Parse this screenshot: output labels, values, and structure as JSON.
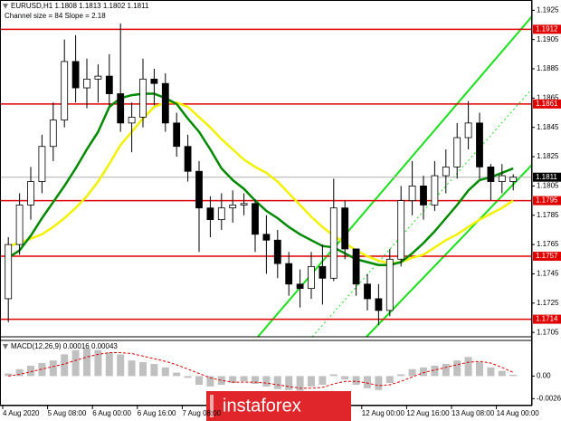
{
  "chart_data": {
    "type": "candlestick",
    "title": "EURUSD,H1 1.1808 1.1813 1.1802 1.1811",
    "subtitle": "Channel size = 84 Slope = 2.18",
    "categories": [
      "4 Aug 2020",
      null,
      null,
      null,
      "5 Aug 08:00",
      null,
      null,
      null,
      "6 Aug 00:00",
      null,
      null,
      null,
      "6 Aug 16:00",
      null,
      null,
      null,
      "7 Aug 08:00",
      null,
      null,
      null,
      null,
      null,
      null,
      null,
      null,
      null,
      null,
      null,
      null,
      null,
      null,
      null,
      "12 Aug 00:00",
      null,
      null,
      null,
      "12 Aug 16:00",
      null,
      null,
      null,
      "13 Aug 08:00",
      null,
      null,
      null,
      "14 Aug 00:00",
      null
    ],
    "open": [
      1.1728,
      1.1765,
      1.1792,
      1.1808,
      1.1832,
      1.185,
      1.189,
      1.1872,
      1.1878,
      1.188,
      1.1868,
      1.1848,
      1.1852,
      1.1878,
      1.1875,
      1.1848,
      1.1832,
      1.1815,
      1.179,
      1.1782,
      1.179,
      1.1792,
      1.1793,
      1.1772,
      1.1768,
      1.1752,
      1.1738,
      1.1735,
      1.175,
      1.1742,
      1.179,
      1.1762,
      1.1738,
      1.1728,
      1.172,
      1.1755,
      1.1795,
      1.1805,
      1.1792,
      1.1812,
      1.1818,
      1.1838,
      1.1848,
      1.1818,
      1.1808,
      1.1808
    ],
    "high": [
      1.177,
      1.18,
      1.1818,
      1.184,
      1.1862,
      1.1905,
      1.1908,
      1.1892,
      1.1888,
      1.1895,
      1.1916,
      1.1862,
      1.1892,
      1.1885,
      1.1882,
      1.1855,
      1.184,
      1.1822,
      1.1798,
      1.18,
      1.1802,
      1.18,
      1.1796,
      1.1785,
      1.1775,
      1.176,
      1.1748,
      1.176,
      1.1765,
      1.181,
      1.1795,
      1.1762,
      1.1745,
      1.1738,
      1.1762,
      1.1805,
      1.1822,
      1.1812,
      1.1822,
      1.183,
      1.1848,
      1.1863,
      1.1855,
      1.182,
      1.182,
      1.1813
    ],
    "low": [
      1.1712,
      1.1758,
      1.1782,
      1.18,
      1.1822,
      1.1845,
      1.1862,
      1.1858,
      1.1862,
      1.186,
      1.1842,
      1.1828,
      1.1845,
      1.186,
      1.1842,
      1.1825,
      1.1808,
      1.176,
      1.177,
      1.1775,
      1.178,
      1.1785,
      1.176,
      1.1745,
      1.1742,
      1.173,
      1.1722,
      1.1728,
      1.1724,
      1.174,
      1.1755,
      1.173,
      1.172,
      1.171,
      1.1716,
      1.175,
      1.1785,
      1.1782,
      1.1788,
      1.18,
      1.181,
      1.183,
      1.181,
      1.1795,
      1.18,
      1.1802
    ],
    "close": [
      1.1765,
      1.1792,
      1.1808,
      1.1832,
      1.185,
      1.189,
      1.1872,
      1.1878,
      1.188,
      1.1868,
      1.1848,
      1.1852,
      1.1878,
      1.1875,
      1.1848,
      1.1832,
      1.1815,
      1.179,
      1.1782,
      1.179,
      1.1792,
      1.1793,
      1.1772,
      1.1768,
      1.1752,
      1.1738,
      1.1735,
      1.175,
      1.1742,
      1.179,
      1.1762,
      1.1738,
      1.1728,
      1.172,
      1.1755,
      1.1795,
      1.1805,
      1.1792,
      1.1812,
      1.1818,
      1.1838,
      1.1848,
      1.1818,
      1.1808,
      1.1812,
      1.1811
    ],
    "overlays": [
      {
        "color": "#f2f200",
        "values": [
          1.1764,
          1.1766,
          1.1769,
          1.1772,
          1.1777,
          1.1783,
          1.179,
          1.1798,
          1.1808,
          1.182,
          1.1833,
          1.1842,
          1.1851,
          1.1859,
          1.1862,
          1.1862,
          1.1859,
          1.1852,
          1.1845,
          1.1837,
          1.183,
          1.1823,
          1.1818,
          1.1814,
          1.1808,
          1.18,
          1.1792,
          1.1784,
          1.1777,
          1.1771,
          1.1766,
          1.1761,
          1.1757,
          1.1754,
          1.1752,
          1.1753,
          1.1756,
          1.1758,
          1.1763,
          1.1768,
          1.1772,
          1.1777,
          1.1782,
          1.1786,
          1.179,
          1.1795
        ]
      },
      {
        "color": "#008a00",
        "values": [
          1.1756,
          1.1761,
          1.1771,
          1.1783,
          1.1794,
          1.1805,
          1.1817,
          1.183,
          1.1842,
          1.1859,
          1.1865,
          1.1867,
          1.1868,
          1.1868,
          1.1865,
          1.1861,
          1.1851,
          1.1842,
          1.183,
          1.1817,
          1.1809,
          1.1803,
          1.1795,
          1.1788,
          1.1783,
          1.1777,
          1.1772,
          1.1768,
          1.1764,
          1.1763,
          1.1759,
          1.1755,
          1.1753,
          1.1751,
          1.1751,
          1.1753,
          1.1759,
          1.1766,
          1.1774,
          1.1783,
          1.1792,
          1.1802,
          1.1809,
          1.1811,
          1.1814,
          1.1817
        ]
      }
    ],
    "ylim": [
      1.1702,
      1.1932
    ],
    "yticks": [
      1.1925,
      1.1905,
      1.1885,
      1.1865,
      1.1845,
      1.1825,
      1.1805,
      1.1785,
      1.1765,
      1.1745,
      1.1725,
      1.1705
    ],
    "levels": {
      "color": "#e00000",
      "values": [
        1.1912,
        1.1861,
        1.1795,
        1.1757,
        1.1714
      ]
    },
    "last_price": 1.1811,
    "macd": {
      "label": "MACD(12,26,9) 0.00016 0.00043",
      "histogram": [
        0.0003,
        0.0008,
        0.0012,
        0.0015,
        0.0018,
        0.0025,
        0.003,
        0.0032,
        0.003,
        0.0027,
        0.0025,
        0.0018,
        0.0016,
        0.0014,
        0.001,
        0.0004,
        -0.0002,
        -0.001,
        -0.0012,
        -0.001,
        -0.0008,
        -0.0006,
        -0.0009,
        -0.0012,
        -0.0015,
        -0.0016,
        -0.0017,
        -0.0012,
        -0.001,
        0.0002,
        -0.0004,
        -0.001,
        -0.0014,
        -0.0016,
        -0.0008,
        0.0002,
        0.0008,
        0.001,
        0.0012,
        0.0014,
        0.0018,
        0.0022,
        0.0016,
        0.001,
        0.0006,
        0.00016
      ],
      "signal": [
        0,
        0.0002,
        0.0005,
        0.0008,
        0.0011,
        0.0014,
        0.0018,
        0.0022,
        0.0025,
        0.0027,
        0.0027,
        0.0026,
        0.0023,
        0.002,
        0.0017,
        0.0013,
        0.0008,
        0.0003,
        -0.0002,
        -0.0005,
        -0.0007,
        -0.0007,
        -0.0007,
        -0.0008,
        -0.001,
        -0.0012,
        -0.0014,
        -0.0014,
        -0.0013,
        -0.0009,
        -0.0006,
        -0.0006,
        -0.0008,
        -0.0011,
        -0.001,
        -0.0006,
        -0.0001,
        0.0004,
        0.0007,
        0.001,
        0.0013,
        0.0016,
        0.0017,
        0.0015,
        0.001,
        0.00043
      ],
      "ylim": [
        -0.0034,
        0.0039
      ],
      "yticks": [
        {
          "value": 0,
          "label": "0.00"
        },
        -0.0026
      ]
    },
    "watermark": "instaforex"
  }
}
